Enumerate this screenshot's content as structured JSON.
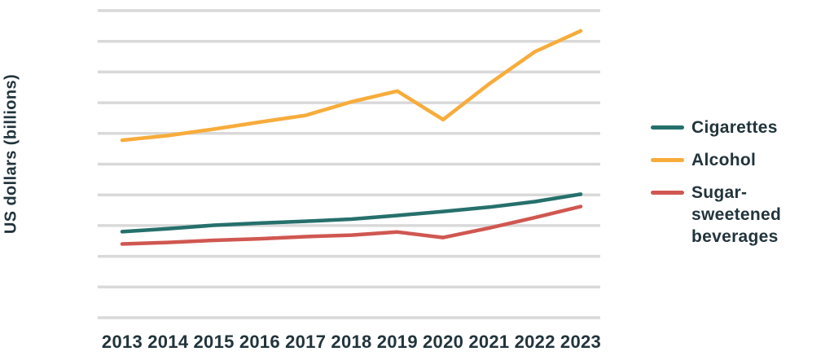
{
  "figure": {
    "background_color": "#ffffff",
    "text_color": "#22343C"
  },
  "chart_data": {
    "type": "line",
    "title": "",
    "xlabel": "",
    "y_axis_label": "US dollars (billions)",
    "categories": [
      "2013",
      "2014",
      "2015",
      "2016",
      "2017",
      "2018",
      "2019",
      "2020",
      "2021",
      "2022",
      "2023"
    ],
    "series": [
      {
        "name": "Cigarettes",
        "legend_label": "Cigarettes",
        "color": "#26706C",
        "values": [
          2.8,
          2.9,
          3.01,
          3.08,
          3.14,
          3.21,
          3.33,
          3.46,
          3.6,
          3.78,
          4.02
        ]
      },
      {
        "name": "Alcohol",
        "legend_label": "Alcohol",
        "color": "#F7AC3B",
        "values": [
          5.78,
          5.93,
          6.14,
          6.37,
          6.59,
          7.03,
          7.38,
          6.45,
          7.61,
          8.66,
          9.34
        ]
      },
      {
        "name": "Sugar-sweetened beverages",
        "legend_label": "Sugar-sweetened\nbeverages",
        "color": "#D05751",
        "values": [
          2.4,
          2.45,
          2.52,
          2.57,
          2.64,
          2.69,
          2.79,
          2.61,
          2.92,
          3.26,
          3.62
        ]
      }
    ],
    "value_units_note": "Y-axis tick labels are not shown in the image; values are measured in gridline units where the bottom gridline = 0 and each of the 11 horizontal gridlines is 1 unit apart.",
    "ylim": [
      0,
      10
    ],
    "gridline_count": 11,
    "grid_color": "#D9D9D9",
    "grid_visible": true,
    "legend_position": "right"
  }
}
